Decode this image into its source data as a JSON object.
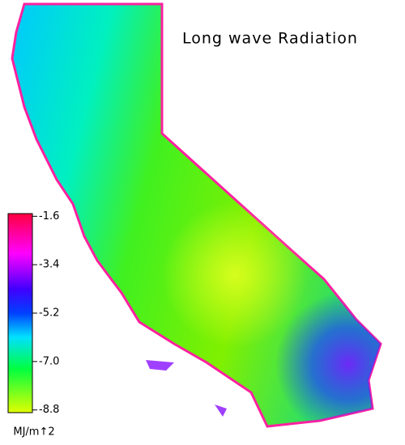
{
  "title": "Long wave Radiation",
  "colorbar": {
    "unit": "MJ/m↑2",
    "clim": [
      -8.9,
      -1.5
    ],
    "ticks": [
      -1.6,
      -3.4,
      -5.2,
      {
        "value": -7,
        "label": "-7.0"
      },
      -8.8
    ]
  }
}
